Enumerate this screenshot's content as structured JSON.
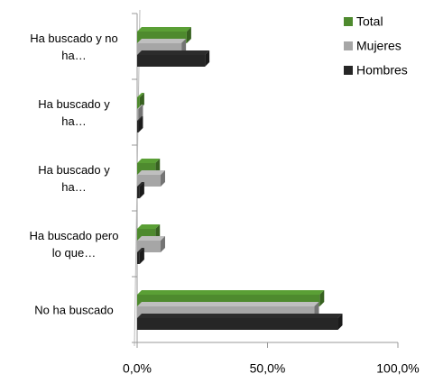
{
  "chart_data": {
    "type": "bar",
    "orientation": "horizontal",
    "categories": [
      "Ha buscado y no ha…",
      "Ha buscado y ha…",
      "Ha buscado y ha…",
      "Ha buscado pero lo que…",
      "No ha buscado"
    ],
    "series": [
      {
        "name": "Total",
        "color": "#4e8a2e",
        "values": [
          19,
          1,
          7,
          7,
          70
        ]
      },
      {
        "name": "Mujeres",
        "color": "#a6a6a6",
        "values": [
          17,
          0.5,
          9,
          9,
          68
        ]
      },
      {
        "name": "Hombres",
        "color": "#262626",
        "values": [
          26,
          0.5,
          1,
          1,
          77
        ]
      }
    ],
    "xlim": [
      0,
      100
    ],
    "xticks": [
      {
        "value": 0,
        "label": "0,0%"
      },
      {
        "value": 50,
        "label": "50,0%"
      },
      {
        "value": 100,
        "label": "100,0%"
      }
    ],
    "legend": "top-right"
  }
}
